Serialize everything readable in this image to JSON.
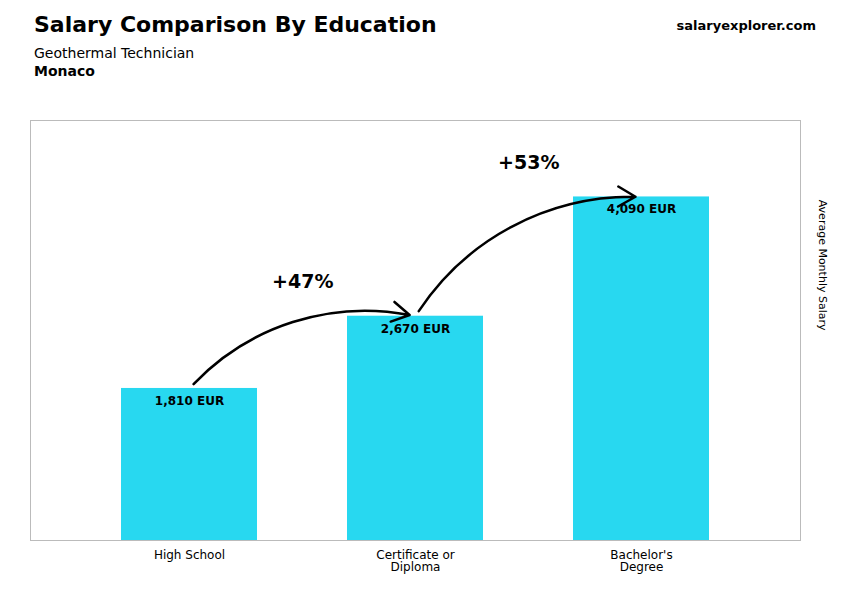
{
  "chart_data": {
    "type": "bar",
    "title": "Salary Comparison By Education",
    "subtitle": [
      "Geothermal Technician",
      "Monaco"
    ],
    "categories": [
      "High School",
      "Certificate or\nDiploma",
      "Bachelor's\nDegree"
    ],
    "values": [
      1810,
      2670,
      4090
    ],
    "value_labels": [
      "1,810 EUR",
      "2,670 EUR",
      "4,090 EUR"
    ],
    "data_labels": true,
    "color": "#28d8f0",
    "ylabel": "Average Monthly Salary",
    "ylim": [
      0,
      5000
    ],
    "grid": false,
    "tick_labels": "x",
    "annotations": [
      {
        "text": "+47%",
        "from": "High School",
        "to": "Certificate or\nDiploma"
      },
      {
        "text": "+53%",
        "from": "Certificate or\nDiploma",
        "to": "Bachelor's\nDegree"
      },
      {
        "text": "salaryexplorer.com"
      }
    ]
  }
}
